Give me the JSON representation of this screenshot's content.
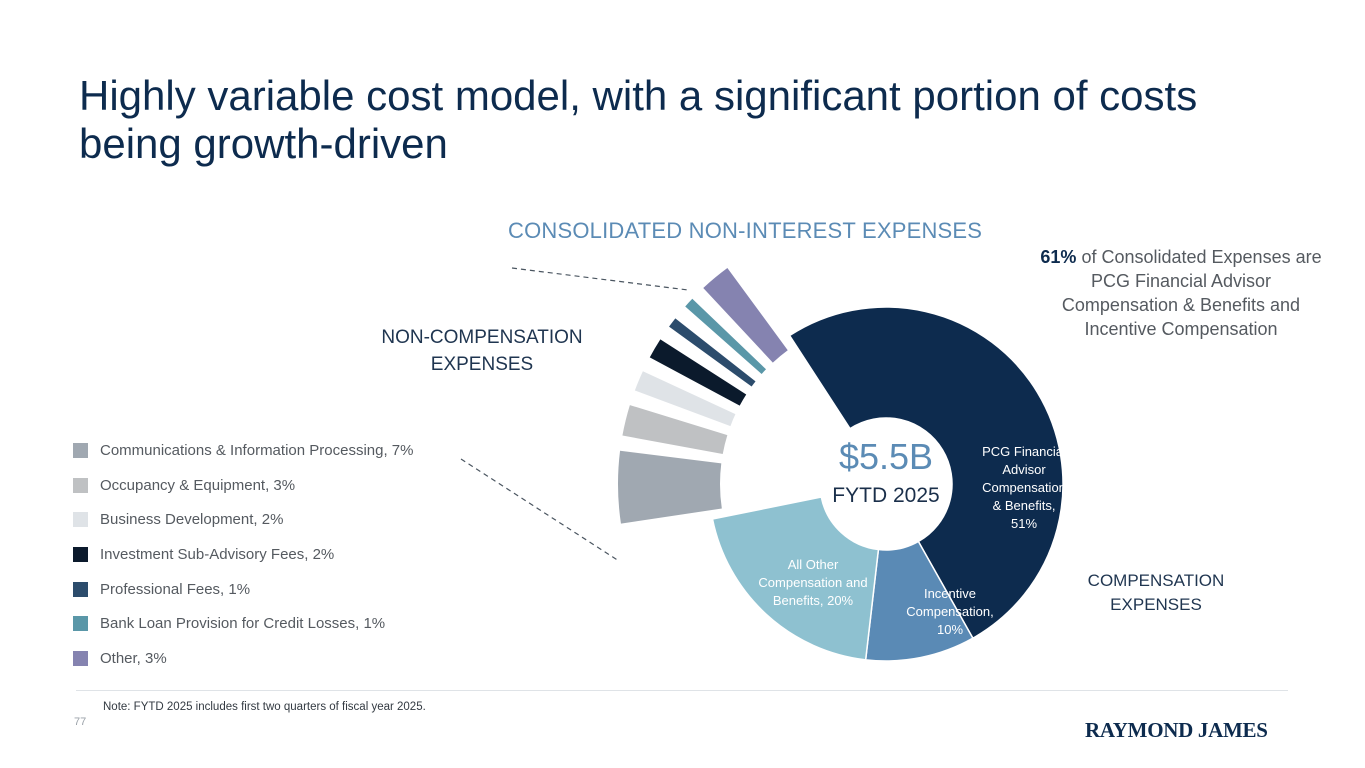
{
  "title": "Highly variable cost model, with a significant portion of costs being growth-driven",
  "callout": {
    "highlight": "61%",
    "text": " of Consolidated Expenses are PCG Financial Advisor Compensation & Benefits and Incentive Compensation"
  },
  "labels": {
    "non_compensation": "NON-COMPENSATION EXPENSES",
    "compensation": "COMPENSATION EXPENSES"
  },
  "note": "Note: FYTD 2025 includes first two quarters of fiscal year 2025.",
  "page_number": "77",
  "logo_text": "RAYMOND JAMES",
  "chart_data": {
    "type": "pie",
    "subtype": "donut",
    "title": "CONSOLIDATED NON-INTEREST EXPENSES",
    "center_value": "$5.5B",
    "center_label": "FYTD 2025",
    "unit": "percent of consolidated non-interest expenses",
    "compensation_slices": [
      {
        "name": "PCG Financial Advisor Compensation & Benefits",
        "value": 51,
        "label_lines": [
          "PCG Financial",
          "Advisor",
          "Compensation",
          "& Benefits,",
          "51%"
        ],
        "color": "#0d2b4e"
      },
      {
        "name": "Incentive Compensation",
        "value": 10,
        "label_lines": [
          "Incentive",
          "Compensation,",
          "10%"
        ],
        "color": "#5a8ab5"
      },
      {
        "name": "All Other Compensation and Benefits",
        "value": 20,
        "label_lines": [
          "All Other",
          "Compensation and",
          "Benefits, 20%"
        ],
        "color": "#8ec1d0"
      }
    ],
    "non_compensation_slices": [
      {
        "name": "Communications & Information Processing",
        "value": 7,
        "legend": "Communications & Information Processing, 7%",
        "color": "#a0a8b1"
      },
      {
        "name": "Occupancy & Equipment",
        "value": 3,
        "legend": "Occupancy & Equipment, 3%",
        "color": "#bfc1c3"
      },
      {
        "name": "Business Development",
        "value": 2,
        "legend": "Business Development, 2%",
        "color": "#dfe3e7"
      },
      {
        "name": "Investment Sub-Advisory Fees",
        "value": 2,
        "legend": "Investment Sub-Advisory Fees, 2%",
        "color": "#0b1a2c"
      },
      {
        "name": "Professional Fees",
        "value": 1,
        "legend": "Professional Fees, 1%",
        "color": "#2c4c6c"
      },
      {
        "name": "Bank Loan Provision for Credit Losses",
        "value": 1,
        "legend": "Bank Loan Provision for Credit Losses, 1%",
        "color": "#5a97a8"
      },
      {
        "name": "Other",
        "value": 3,
        "legend": "Other, 3%",
        "color": "#8583b0"
      }
    ]
  }
}
